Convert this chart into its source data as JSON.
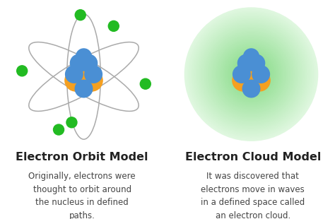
{
  "bg_color": "#ffffff",
  "left_title": "Electron Orbit Model",
  "right_title": "Electron Cloud Model",
  "left_desc": "Originally, electrons were\nthought to orbit around\nthe nucleus in defined\npaths.",
  "right_desc": "It was discovered that\nelectrons move in waves\nin a defined space called\nan electron cloud.",
  "title_fontsize": 11.5,
  "desc_fontsize": 8.5,
  "nucleus_blue": "#4a8fd4",
  "nucleus_orange": "#f5a020",
  "electron_green": "#22bb22",
  "orbit_color": "#aaaaaa",
  "text_color": "#222222",
  "desc_color": "#444444"
}
